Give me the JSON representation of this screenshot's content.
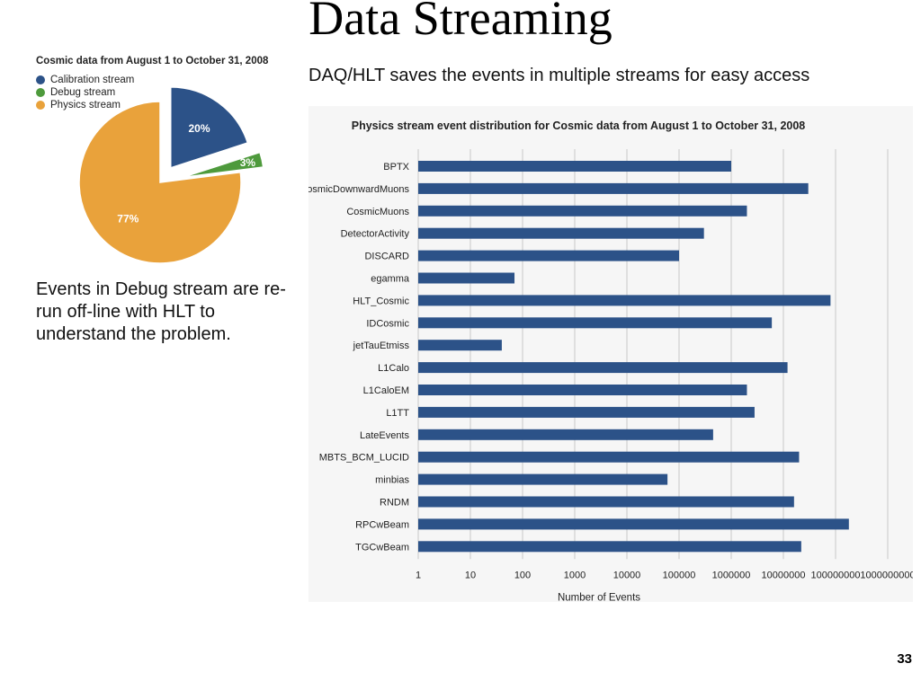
{
  "slide": {
    "title": "Data Streaming",
    "subheading": "DAQ/HLT saves the events in multiple streams for easy access",
    "note": "Events in Debug stream are re-run off-line with HLT to understand the problem.",
    "page_number": "33"
  },
  "chart_data": [
    {
      "type": "pie",
      "title": "Cosmic data from August 1 to October 31, 2008",
      "legend_position": "top-left",
      "slices": [
        {
          "name": "Calibration stream",
          "value": 20,
          "label": "20%",
          "color": "#2c5288",
          "exploded": true
        },
        {
          "name": "Debug stream",
          "value": 3,
          "label": "3%",
          "color": "#4e9a3c",
          "exploded": true
        },
        {
          "name": "Physics stream",
          "value": 77,
          "label": "77%",
          "color": "#e9a23b",
          "exploded": false
        }
      ]
    },
    {
      "type": "bar",
      "orientation": "horizontal",
      "title": "Physics stream event distribution for Cosmic data from August 1 to October 31, 2008",
      "xlabel": "Number of Events",
      "ylabel": "",
      "xscale": "log",
      "xlim": [
        1,
        1000000000
      ],
      "xticks": [
        "1",
        "10",
        "100",
        "1000",
        "10000",
        "100000",
        "1000000",
        "10000000",
        "100000000",
        "1000000000"
      ],
      "grid": true,
      "bar_color": "#2c5288",
      "categories": [
        "BPTX",
        "CosmicDownwardMuons",
        "CosmicMuons",
        "DetectorActivity",
        "DISCARD",
        "egamma",
        "HLT_Cosmic",
        "IDCosmic",
        "jetTauEtmiss",
        "L1Calo",
        "L1CaloEM",
        "L1TT",
        "LateEvents",
        "MBTS_BCM_LUCID",
        "minbias",
        "RNDM",
        "RPCwBeam",
        "TGCwBeam"
      ],
      "values": [
        1000000,
        30000000,
        2000000,
        300000,
        100000,
        70,
        80000000,
        6000000,
        40,
        12000000,
        2000000,
        2800000,
        450000,
        20000000,
        60000,
        16000000,
        180000000,
        22000000
      ]
    }
  ]
}
